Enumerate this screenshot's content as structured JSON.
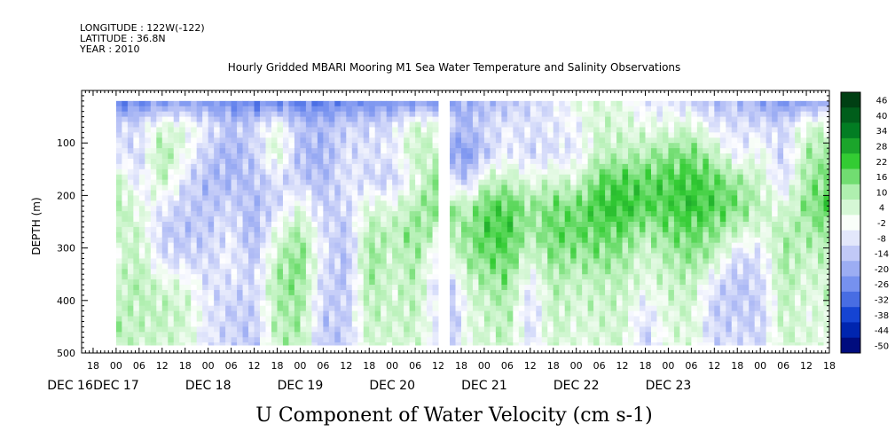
{
  "header": {
    "longitude": "LONGITUDE : 122W(-122)",
    "latitude": "LATITUDE : 36.8N",
    "year": "YEAR : 2010",
    "title": "Hourly Gridded MBARI Mooring M1 Sea Water Temperature and Salinity Observations"
  },
  "chart_data": {
    "type": "heatmap",
    "title": "Hourly Gridded MBARI Mooring M1 Sea Water Temperature and Salinity Observations",
    "xlabel": "",
    "ylabel": "DEPTH (m)",
    "variable_label": "U Component of Water Velocity (cm s-1)",
    "y_ticks": [
      100,
      200,
      300,
      400,
      500
    ],
    "ylim": [
      500,
      0
    ],
    "x_hour_ticks": [
      "18",
      "00",
      "06",
      "12",
      "18",
      "00",
      "06",
      "12",
      "18",
      "00",
      "06",
      "12",
      "18",
      "00",
      "06",
      "12",
      "18",
      "00",
      "06",
      "12",
      "18",
      "00",
      "06",
      "12",
      "18",
      "00",
      "06",
      "12",
      "18",
      "00",
      "06",
      "12",
      "18"
    ],
    "x_hour_values": [
      -6,
      0,
      6,
      12,
      18,
      24,
      30,
      36,
      42,
      48,
      54,
      60,
      66,
      72,
      78,
      84,
      90,
      96,
      102,
      108,
      114,
      120,
      126,
      132,
      138,
      144,
      150,
      156,
      162,
      168,
      174,
      180,
      186
    ],
    "x_date_labels": [
      "DEC 16",
      "DEC 17",
      "DEC 18",
      "DEC 19",
      "DEC 20",
      "DEC 21",
      "DEC 22",
      "DEC 23"
    ],
    "x_date_values": [
      -12,
      0,
      24,
      48,
      72,
      96,
      120,
      144
    ],
    "xlim": [
      -9,
      186
    ],
    "colorbar_labels": [
      "46",
      "40",
      "34",
      "28",
      "22",
      "16",
      "10",
      "4",
      "-2",
      "-8",
      "-14",
      "-20",
      "-26",
      "-32",
      "-38",
      "-44",
      "-50"
    ],
    "colorbar_range": [
      -50,
      50
    ],
    "colormap": [
      "#000066",
      "#0033cc",
      "#6a88ee",
      "#b8c2f6",
      "#ffffff",
      "#b4f0b4",
      "#33cc33",
      "#007a22",
      "#003a12"
    ],
    "depth_data_range": [
      20,
      485
    ],
    "time_data_range": [
      0,
      186
    ],
    "gap_hours": [
      85,
      87
    ],
    "column_profiles": [
      {
        "t": 0,
        "v": [
          -25,
          -8,
          -4,
          10,
          12,
          8,
          6,
          8,
          10,
          12
        ]
      },
      {
        "t": 6,
        "v": [
          -25,
          -6,
          -8,
          -6,
          4,
          8,
          10,
          12,
          10,
          8
        ]
      },
      {
        "t": 12,
        "v": [
          -22,
          6,
          14,
          10,
          -4,
          -10,
          -6,
          6,
          10,
          8
        ]
      },
      {
        "t": 18,
        "v": [
          -20,
          4,
          2,
          -6,
          -10,
          -12,
          -8,
          4,
          8,
          6
        ]
      },
      {
        "t": 24,
        "v": [
          -22,
          -4,
          -10,
          -14,
          -12,
          -10,
          -8,
          -6,
          -4,
          -6
        ]
      },
      {
        "t": 30,
        "v": [
          -24,
          -12,
          -16,
          -14,
          -8,
          -4,
          -2,
          -6,
          -10,
          -8
        ]
      },
      {
        "t": 36,
        "v": [
          -26,
          -8,
          -10,
          -12,
          -14,
          -16,
          -12,
          -8,
          -10,
          -12
        ]
      },
      {
        "t": 42,
        "v": [
          -24,
          4,
          8,
          -6,
          -8,
          4,
          10,
          14,
          12,
          10
        ]
      },
      {
        "t": 48,
        "v": [
          -26,
          -12,
          -14,
          -10,
          4,
          14,
          18,
          16,
          14,
          12
        ]
      },
      {
        "t": 54,
        "v": [
          -26,
          -14,
          -16,
          -14,
          -10,
          -6,
          -4,
          -8,
          -10,
          -12
        ]
      },
      {
        "t": 60,
        "v": [
          -24,
          -8,
          -6,
          -4,
          -8,
          -12,
          -14,
          -12,
          -10,
          -10
        ]
      },
      {
        "t": 66,
        "v": [
          -24,
          -8,
          -6,
          -8,
          6,
          12,
          16,
          14,
          10,
          8
        ]
      },
      {
        "t": 72,
        "v": [
          -22,
          -6,
          -4,
          -10,
          4,
          10,
          8,
          6,
          8,
          6
        ]
      },
      {
        "t": 78,
        "v": [
          -22,
          8,
          10,
          4,
          12,
          16,
          14,
          12,
          10,
          8
        ]
      },
      {
        "t": 84,
        "v": [
          -20,
          4,
          8,
          16,
          18,
          8,
          -4,
          -8,
          -6,
          -4
        ]
      },
      {
        "t": 88,
        "v": [
          -18,
          -12,
          -20,
          -6,
          14,
          12,
          6,
          -6,
          -12,
          -10
        ]
      },
      {
        "t": 92,
        "v": [
          -16,
          -14,
          -20,
          -12,
          10,
          16,
          14,
          8,
          4,
          6
        ]
      },
      {
        "t": 96,
        "v": [
          -14,
          -8,
          -12,
          8,
          20,
          22,
          18,
          12,
          8,
          6
        ]
      },
      {
        "t": 102,
        "v": [
          -12,
          -4,
          -2,
          10,
          22,
          24,
          20,
          16,
          12,
          10
        ]
      },
      {
        "t": 108,
        "v": [
          -8,
          -6,
          -8,
          4,
          14,
          12,
          6,
          -4,
          -8,
          -6
        ]
      },
      {
        "t": 114,
        "v": [
          -6,
          -4,
          -6,
          8,
          18,
          20,
          16,
          12,
          10,
          8
        ]
      },
      {
        "t": 120,
        "v": [
          4,
          -2,
          -4,
          6,
          18,
          20,
          14,
          8,
          6,
          4
        ]
      },
      {
        "t": 126,
        "v": [
          6,
          8,
          10,
          20,
          24,
          20,
          16,
          10,
          8,
          6
        ]
      },
      {
        "t": 132,
        "v": [
          4,
          6,
          10,
          22,
          26,
          20,
          14,
          10,
          8,
          8
        ]
      },
      {
        "t": 138,
        "v": [
          -6,
          4,
          12,
          20,
          22,
          12,
          6,
          4,
          -6,
          -10
        ]
      },
      {
        "t": 144,
        "v": [
          -4,
          4,
          16,
          22,
          22,
          18,
          12,
          8,
          6,
          4
        ]
      },
      {
        "t": 150,
        "v": [
          -10,
          8,
          18,
          24,
          26,
          20,
          16,
          10,
          8,
          6
        ]
      },
      {
        "t": 156,
        "v": [
          -14,
          -4,
          10,
          20,
          22,
          16,
          10,
          -6,
          -10,
          -8
        ]
      },
      {
        "t": 162,
        "v": [
          -12,
          -6,
          -4,
          14,
          18,
          8,
          -8,
          -12,
          -10,
          -6
        ]
      },
      {
        "t": 168,
        "v": [
          -18,
          -6,
          4,
          8,
          10,
          4,
          -6,
          -8,
          -10,
          -8
        ]
      },
      {
        "t": 174,
        "v": [
          -22,
          -8,
          -10,
          -8,
          4,
          12,
          14,
          12,
          10,
          8
        ]
      },
      {
        "t": 180,
        "v": [
          -20,
          6,
          12,
          14,
          16,
          12,
          8,
          6,
          4,
          6
        ]
      },
      {
        "t": 186,
        "v": [
          -18,
          8,
          14,
          18,
          22,
          16,
          10,
          8,
          6,
          4
        ]
      }
    ],
    "profile_depths": [
      20,
      70,
      120,
      170,
      220,
      270,
      320,
      370,
      420,
      485
    ]
  }
}
